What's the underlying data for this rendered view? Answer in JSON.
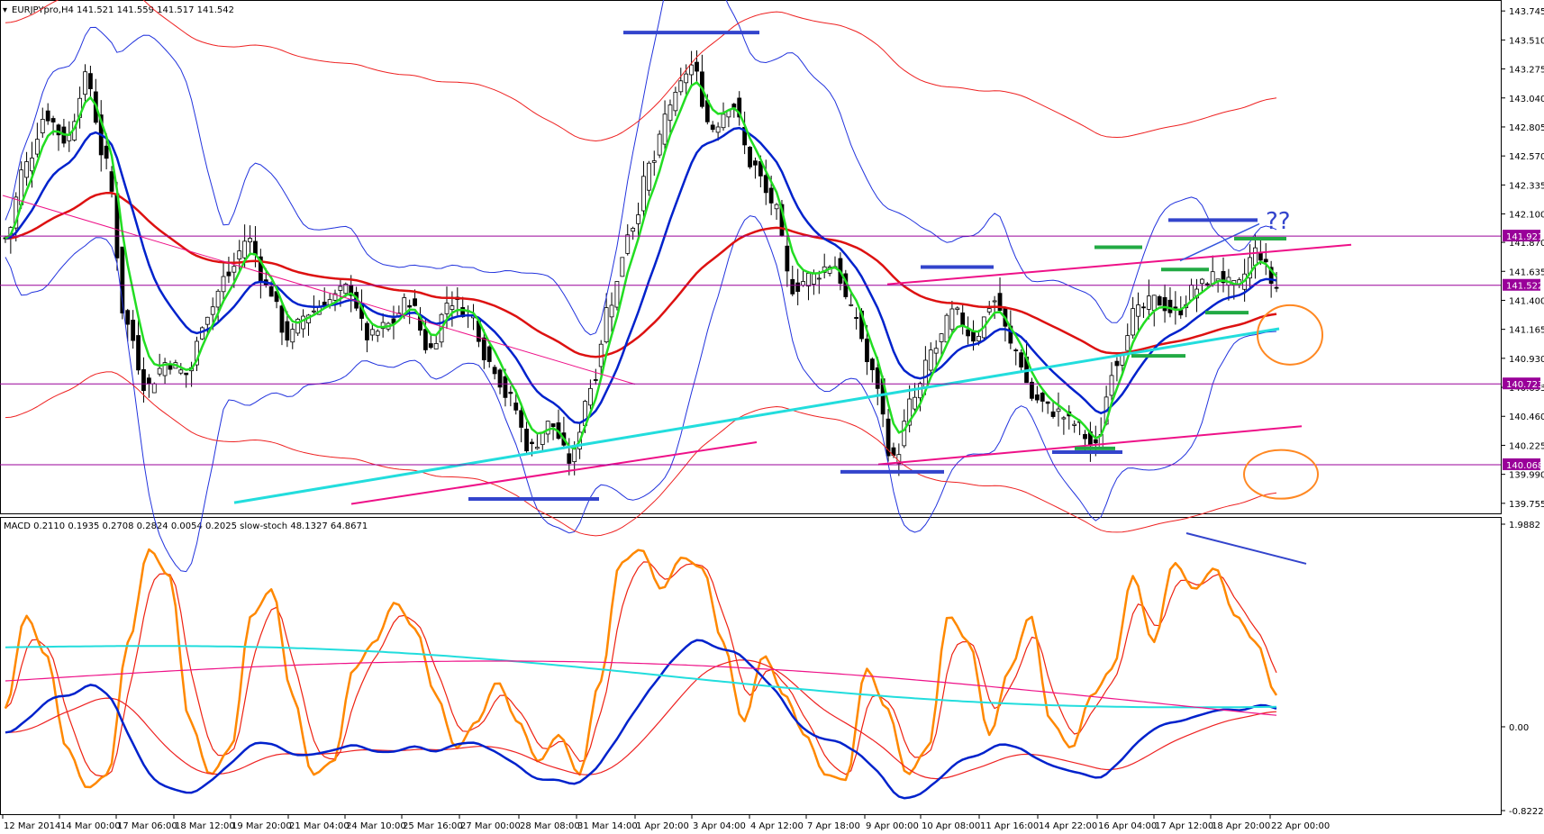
{
  "window": {
    "symbol_header": "EURJPYpro,H4  141.521 141.559 141.517 141.542"
  },
  "indicator_header": "MACD 0.2110 0.1935 0.2708 0.2824 0.0054 0.2025  slow-stoch 48.1327 64.8671",
  "annotation_text": "??",
  "colors": {
    "background": "#ffffff",
    "bull_candle": "#ffffff",
    "bear_candle": "#000000",
    "ema_green": "#22dd22",
    "ma_blue": "#0022cc",
    "ma_red": "#dd1111",
    "bollinger": "#2233dd",
    "envelope_red": "#ee2222",
    "trend_cyan": "#22dddd",
    "trend_pink": "#ee1188",
    "level_purple": "#990099",
    "stoch_orange": "#ff8800",
    "stoch_signal": "#ee2211",
    "macd_blue": "#0022cc",
    "macd_red": "#ee2222",
    "macd_cyan": "#22dddd",
    "macd_pink": "#ee1188",
    "marker_blue": "#3344cc",
    "marker_green": "#22aa44",
    "circle_orange": "#ff8822"
  },
  "chart_data": [
    {
      "type": "candlestick",
      "title": "EURJPYpro,H4",
      "y_ticks": [
        "143.745",
        "143.510",
        "143.275",
        "143.040",
        "142.805",
        "142.570",
        "142.335",
        "142.100",
        "141.870",
        "141.635",
        "141.400",
        "141.165",
        "140.930",
        "140.695",
        "140.460",
        "140.225",
        "139.990",
        "139.755"
      ],
      "y_range": [
        139.71,
        143.79
      ],
      "x_ticks": [
        "12 Mar 2014",
        "14 Mar 00:00",
        "17 Mar 06:00",
        "18 Mar 12:00",
        "19 Mar 20:00",
        "21 Mar 04:00",
        "24 Mar 10:00",
        "25 Mar 16:00",
        "27 Mar 00:00",
        "28 Mar 08:00",
        "31 Mar 14:00",
        "1 Apr 20:00",
        "3 Apr 04:00",
        "4 Apr 12:00",
        "7 Apr 18:00",
        "9 Apr 00:00",
        "10 Apr 08:00",
        "11 Apr 16:00",
        "14 Apr 22:00",
        "16 Apr 04:00",
        "17 Apr 12:00",
        "18 Apr 20:00",
        "22 Apr 00:00"
      ],
      "levels": [
        {
          "label": "141.921",
          "value": 141.921
        },
        {
          "label": "141.522",
          "value": 141.522
        },
        {
          "label": "140.723",
          "value": 140.723
        },
        {
          "label": "140.068",
          "value": 140.068
        }
      ],
      "close_path": [
        141.9,
        142.5,
        142.9,
        142.7,
        143.2,
        142.5,
        141.2,
        140.7,
        140.9,
        140.8,
        141.3,
        141.6,
        141.9,
        141.5,
        141.1,
        141.3,
        141.4,
        141.5,
        141.1,
        141.2,
        141.4,
        141.0,
        141.4,
        141.3,
        140.9,
        140.6,
        140.2,
        140.4,
        140.1,
        140.7,
        141.4,
        142.0,
        142.5,
        143.0,
        143.3,
        142.8,
        143.0,
        142.5,
        142.2,
        141.5,
        141.6,
        141.7,
        141.3,
        140.8,
        140.1,
        140.6,
        141.0,
        141.3,
        141.1,
        141.4,
        141.0,
        140.6,
        140.5,
        140.4,
        140.2,
        140.9,
        141.3,
        141.4,
        141.3,
        141.5,
        141.6,
        141.5,
        141.8,
        141.5
      ]
    },
    {
      "type": "line",
      "title": "MACD / slow-stoch",
      "y_ticks": [
        "1.9882",
        "0.00",
        "-0.8222"
      ],
      "y_range": [
        -0.8222,
        1.9882
      ],
      "stoch_main": [
        35,
        70,
        55,
        20,
        5,
        10,
        60,
        95,
        85,
        30,
        10,
        20,
        70,
        80,
        40,
        10,
        15,
        50,
        60,
        75,
        65,
        40,
        20,
        30,
        45,
        30,
        15,
        25,
        10,
        45,
        90,
        95,
        80,
        92,
        88,
        60,
        30,
        55,
        40,
        25,
        10,
        8,
        50,
        35,
        10,
        20,
        70,
        60,
        25,
        50,
        70,
        30,
        20,
        40,
        50,
        85,
        60,
        90,
        80,
        88,
        70,
        60,
        40
      ]
    }
  ]
}
